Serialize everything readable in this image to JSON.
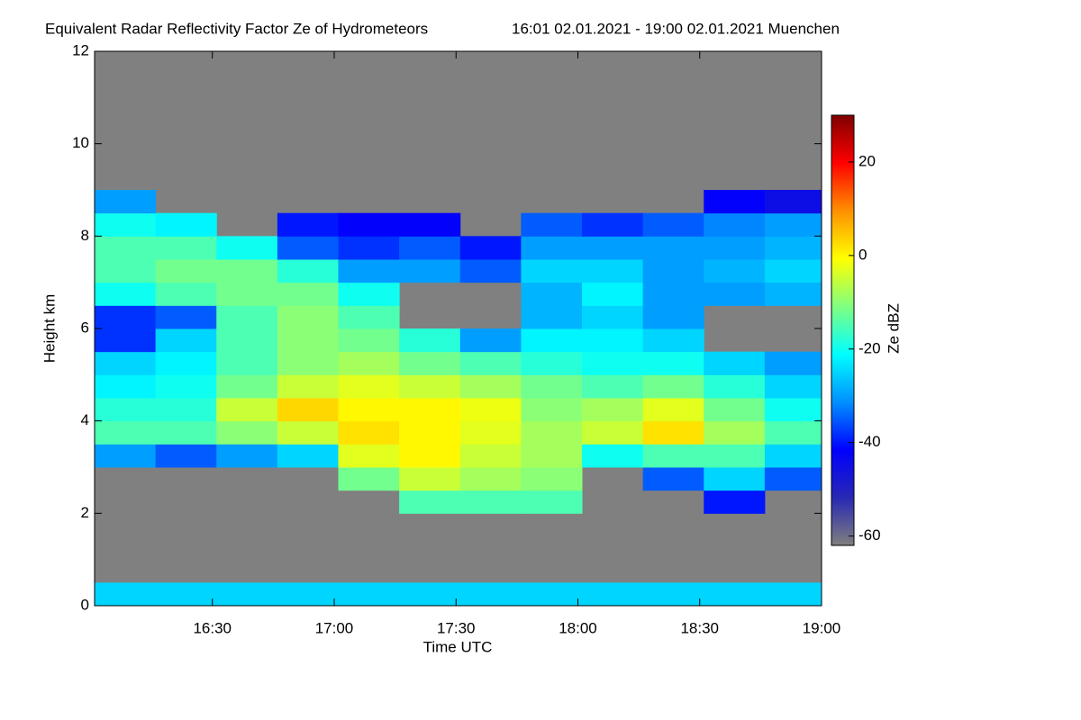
{
  "chart_data": {
    "type": "heatmap",
    "title": "Equivalent Radar Reflectivity Factor Ze of Hydrometeors",
    "subtitle": "16:01 02.01.2021 - 19:00 02.01.2021 Muenchen",
    "xlabel": "Time UTC",
    "ylabel": "Height km",
    "colorbar_label": "Ze dBZ",
    "xlim": [
      961,
      1140
    ],
    "xticks": [
      {
        "value": 990,
        "label": "16:30"
      },
      {
        "value": 1020,
        "label": "17:00"
      },
      {
        "value": 1050,
        "label": "17:30"
      },
      {
        "value": 1080,
        "label": "18:00"
      },
      {
        "value": 1110,
        "label": "18:30"
      },
      {
        "value": 1140,
        "label": "19:00"
      }
    ],
    "ylim": [
      0,
      12
    ],
    "yticks": [
      0,
      2,
      4,
      6,
      8,
      10,
      12
    ],
    "clim": [
      -62,
      30
    ],
    "cticks": [
      -60,
      -40,
      -20,
      0,
      20
    ],
    "colormap": [
      "#7f7f7f",
      "#2828b4",
      "#0000ff",
      "#0090ff",
      "#00ffff",
      "#80ff80",
      "#ffff00",
      "#ff9000",
      "#ff0000",
      "#800000"
    ],
    "background": "#808080",
    "x_edges": [
      961,
      976,
      991,
      1006,
      1021,
      1036,
      1051,
      1066,
      1081,
      1096,
      1111,
      1126,
      1140
    ],
    "y_edges": [
      0,
      0.5,
      1,
      1.5,
      2,
      2.5,
      3,
      3.5,
      4,
      4.5,
      5,
      5.5,
      6,
      6.5,
      7,
      7.5,
      8,
      8.5,
      9
    ],
    "z": [
      [
        -25,
        -25,
        -25,
        -25,
        -25,
        -25,
        -25,
        -25,
        -25,
        -25,
        -25,
        -25
      ],
      [
        null,
        null,
        null,
        null,
        null,
        null,
        null,
        null,
        null,
        null,
        null,
        null
      ],
      [
        null,
        null,
        null,
        null,
        null,
        null,
        null,
        null,
        null,
        null,
        null,
        null
      ],
      [
        null,
        null,
        null,
        null,
        null,
        null,
        null,
        null,
        null,
        null,
        null,
        null
      ],
      [
        null,
        null,
        null,
        null,
        null,
        -15,
        -15,
        -15,
        null,
        null,
        -40,
        null
      ],
      [
        null,
        null,
        null,
        null,
        -12,
        -5,
        -8,
        -10,
        null,
        -35,
        -25,
        -35
      ],
      [
        -30,
        -35,
        -30,
        -25,
        -3,
        0,
        -5,
        -8,
        -20,
        -15,
        -15,
        -25
      ],
      [
        -15,
        -15,
        -10,
        -5,
        2,
        0,
        -3,
        -8,
        -5,
        2,
        -8,
        -15
      ],
      [
        -18,
        -18,
        -5,
        3,
        0,
        0,
        -2,
        -10,
        -8,
        -3,
        -12,
        -20
      ],
      [
        -22,
        -20,
        -12,
        -5,
        -3,
        -5,
        -8,
        -12,
        -15,
        -12,
        -18,
        -25
      ],
      [
        -25,
        -22,
        -15,
        -10,
        -8,
        -12,
        -15,
        -18,
        -20,
        -20,
        -25,
        -30
      ],
      [
        -38,
        -25,
        -15,
        -10,
        -12,
        -18,
        -30,
        -22,
        -22,
        -25,
        null,
        null
      ],
      [
        -38,
        -35,
        -15,
        -10,
        -15,
        null,
        null,
        -28,
        -25,
        -30,
        null,
        null
      ],
      [
        -20,
        -15,
        -12,
        -12,
        -20,
        null,
        null,
        -28,
        -22,
        -30,
        -30,
        -28
      ],
      [
        -15,
        -12,
        -12,
        -18,
        -30,
        -30,
        -35,
        -25,
        -25,
        -30,
        -28,
        -25
      ],
      [
        -15,
        -15,
        -20,
        -35,
        -38,
        -35,
        -40,
        -30,
        -30,
        -30,
        -30,
        -28
      ],
      [
        -20,
        -22,
        null,
        -40,
        -42,
        -42,
        null,
        -35,
        -38,
        -35,
        -32,
        -30
      ],
      [
        -30,
        null,
        null,
        null,
        null,
        null,
        null,
        null,
        null,
        null,
        -42,
        -45
      ]
    ]
  }
}
